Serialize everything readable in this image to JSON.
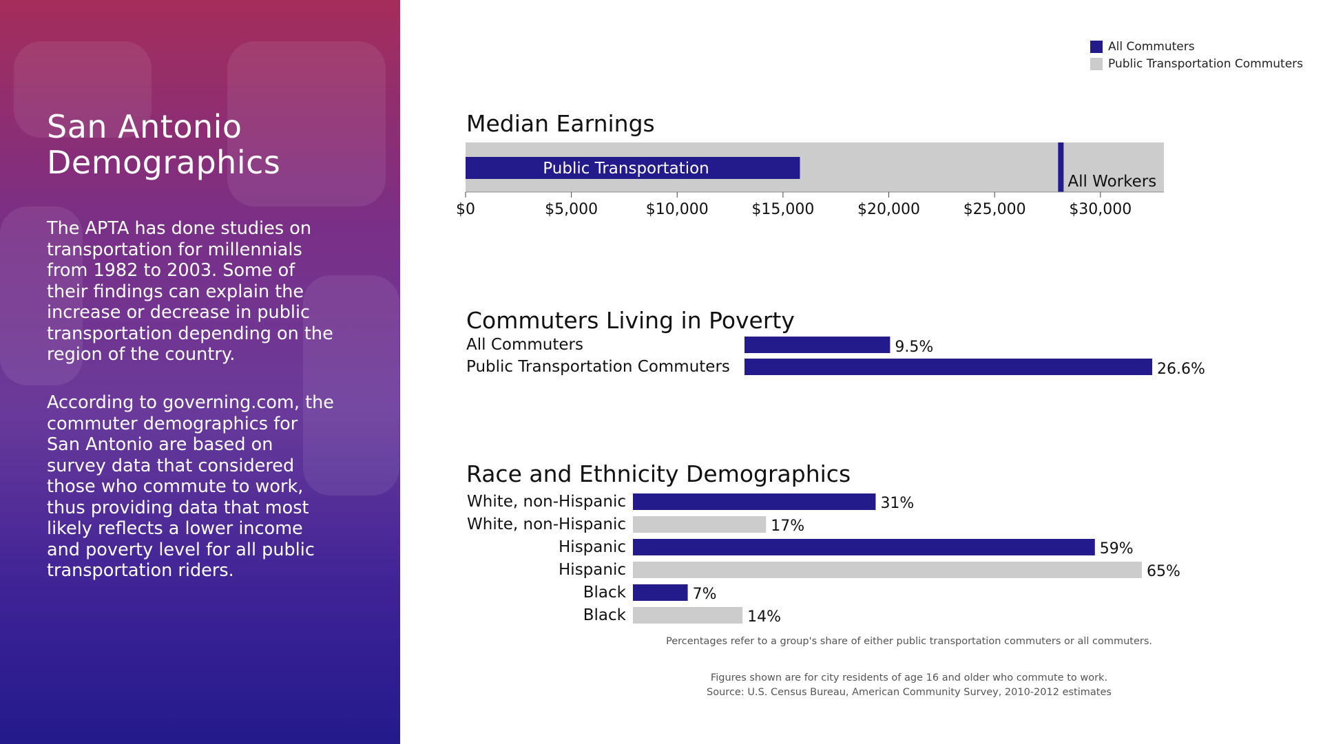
{
  "left": {
    "title_line1": "San Antonio",
    "title_line2": "Demographics",
    "paragraph1": "The APTA has done studies on transportation for millennials from 1982 to 2003. Some of their findings can explain the increase or decrease in public transportation depending on the region of the country.",
    "paragraph2": "According to governing.com, the commuter demographics for San Antonio are based on survey data that considered those who commute to work, thus providing data that most likely reflects a lower income and poverty level for all public transportation riders."
  },
  "legend": [
    {
      "label": "All Commuters",
      "color": "#231a8c"
    },
    {
      "label": "Public Transportation Commuters",
      "color": "#cccccc"
    }
  ],
  "colors": {
    "primary": "#231a8c",
    "secondary": "#cccccc"
  },
  "chart_data": [
    {
      "type": "bar",
      "title": "Median Earnings",
      "orientation": "horizontal",
      "series": [
        {
          "name": "Public Transportation",
          "value": 15800
        },
        {
          "name": "All Workers",
          "value": 28000
        }
      ],
      "xlim": [
        0,
        33000
      ],
      "ticks": [
        0,
        5000,
        10000,
        15000,
        20000,
        25000,
        30000
      ],
      "tick_labels": [
        "$0",
        "$5,000",
        "$10,000",
        "$15,000",
        "$20,000",
        "$25,000",
        "$30,000"
      ]
    },
    {
      "type": "bar",
      "title": "Commuters Living in Poverty",
      "orientation": "horizontal",
      "categories": [
        "All Commuters",
        "Public Transportation Commuters"
      ],
      "values": [
        9.5,
        26.6
      ],
      "labels": [
        "9.5%",
        "26.6%"
      ],
      "xlim": [
        0,
        26.6
      ]
    },
    {
      "type": "bar",
      "title": "Race and Ethnicity Demographics",
      "orientation": "horizontal",
      "categories": [
        "White, non-Hispanic",
        "White, non-Hispanic",
        "Hispanic",
        "Hispanic",
        "Black",
        "Black"
      ],
      "series_of_row": [
        "All Commuters",
        "Public Transportation Commuters",
        "All Commuters",
        "Public Transportation Commuters",
        "All Commuters",
        "Public Transportation Commuters"
      ],
      "values": [
        31,
        17,
        59,
        65,
        7,
        14
      ],
      "labels": [
        "31%",
        "17%",
        "59%",
        "65%",
        "7%",
        "14%"
      ],
      "xlim": [
        0,
        65
      ]
    }
  ],
  "notes": {
    "percent_note": "Percentages refer to a group's share of either public transportation commuters or all commuters.",
    "source_line1": "Figures shown are for city residents of age 16 and older who commute to work.",
    "source_line2": "Source: U.S. Census Bureau, American Community Survey, 2010-2012 estimates"
  }
}
